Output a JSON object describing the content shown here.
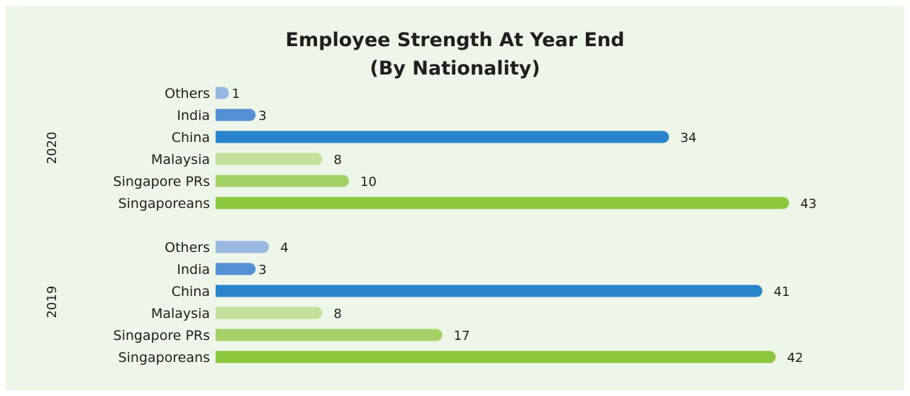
{
  "chart_data": {
    "type": "bar",
    "orientation": "horizontal",
    "title": "Employee Strength At Year End",
    "subtitle": "(By Nationality)",
    "xlim": [
      0,
      45
    ],
    "grid": false,
    "legend": "none",
    "categories": [
      "Others",
      "India",
      "China",
      "Malaysia",
      "Singapore PRs",
      "Singaporeans"
    ],
    "colors": {
      "Others": "#9ab7e2",
      "India": "#5590d4",
      "China": "#2a84cc",
      "Malaysia": "#c4e09c",
      "Singapore PRs": "#a3d166",
      "Singaporeans": "#8dc63f"
    },
    "groups": [
      {
        "name": "2020",
        "values": [
          1,
          3,
          34,
          8,
          10,
          43
        ]
      },
      {
        "name": "2019",
        "values": [
          4,
          3,
          41,
          8,
          17,
          42
        ]
      }
    ]
  }
}
